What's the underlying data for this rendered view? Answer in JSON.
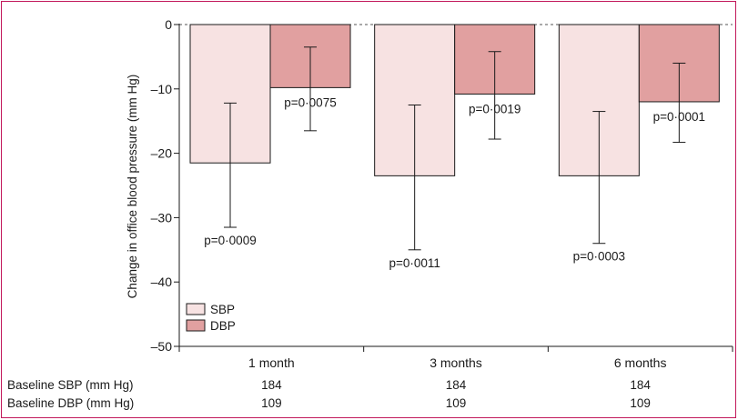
{
  "chart_data": {
    "type": "bar",
    "categories": [
      "1 month",
      "3 months",
      "6 months"
    ],
    "series": [
      {
        "name": "SBP",
        "values": [
          -21.5,
          -23.5,
          -23.5
        ],
        "err_high": [
          -12.2,
          -12.5,
          -13.5
        ],
        "err_low": [
          -31.5,
          -35.0,
          -34.0
        ],
        "p_values": [
          "p=0·0009",
          "p=0·0011",
          "p=0·0003"
        ],
        "color": "#f7e2e2"
      },
      {
        "name": "DBP",
        "values": [
          -9.8,
          -10.8,
          -12.0
        ],
        "err_high": [
          -3.5,
          -4.2,
          -6.0
        ],
        "err_low": [
          -16.5,
          -17.8,
          -18.3
        ],
        "p_values": [
          "p=0·0075",
          "p=0·0019",
          "p=0·0001"
        ],
        "color": "#e1a0a0"
      }
    ],
    "ylabel": "Change in office blood pressure (mm Hg)",
    "ylim": [
      -50,
      0
    ],
    "yticks": [
      0,
      -10,
      -20,
      -30,
      -40,
      -50
    ],
    "ytick_labels": [
      "0",
      "–10",
      "–20",
      "–30",
      "–40",
      "–50"
    ],
    "zero_line": "dashed",
    "legend_position": "bottom-left",
    "baseline_rows": [
      {
        "label": "Baseline SBP (mm Hg)",
        "values": [
          "184",
          "184",
          "184"
        ]
      },
      {
        "label": "Baseline DBP (mm Hg)",
        "values": [
          "109",
          "109",
          "109"
        ]
      }
    ]
  }
}
